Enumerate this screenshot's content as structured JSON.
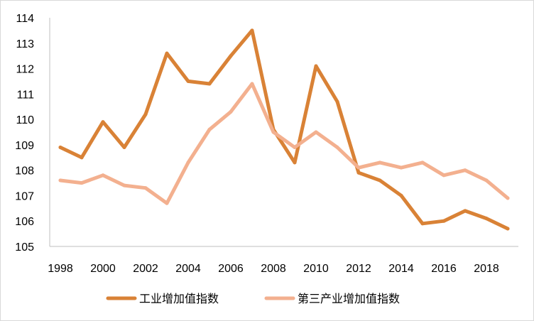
{
  "chart_data": {
    "type": "line",
    "x": [
      1998,
      1999,
      2000,
      2001,
      2002,
      2003,
      2004,
      2005,
      2006,
      2007,
      2008,
      2009,
      2010,
      2011,
      2012,
      2013,
      2014,
      2015,
      2016,
      2017,
      2018,
      2019
    ],
    "x_tick_labels": [
      "1998",
      "2000",
      "2002",
      "2004",
      "2006",
      "2008",
      "2010",
      "2012",
      "2014",
      "2016",
      "2018"
    ],
    "y_tick_labels": [
      "105",
      "106",
      "107",
      "108",
      "109",
      "110",
      "111",
      "112",
      "113",
      "114"
    ],
    "ylim": [
      105,
      114
    ],
    "grid": false,
    "legend_position": "bottom",
    "series": [
      {
        "name": "工业增加值指数",
        "color": "#d98236",
        "values": [
          108.9,
          108.5,
          109.9,
          108.9,
          110.2,
          112.6,
          111.5,
          111.4,
          112.5,
          113.5,
          109.6,
          108.3,
          112.1,
          110.7,
          107.9,
          107.6,
          107.0,
          105.9,
          106.0,
          106.4,
          106.1,
          105.7
        ]
      },
      {
        "name": "第三产业增加值指数",
        "color": "#f3b08f",
        "values": [
          107.6,
          107.5,
          107.8,
          107.4,
          107.3,
          106.7,
          108.3,
          109.6,
          110.3,
          111.4,
          109.5,
          108.9,
          109.5,
          108.9,
          108.1,
          108.3,
          108.1,
          108.3,
          107.8,
          108.0,
          107.6,
          106.9
        ]
      }
    ]
  }
}
